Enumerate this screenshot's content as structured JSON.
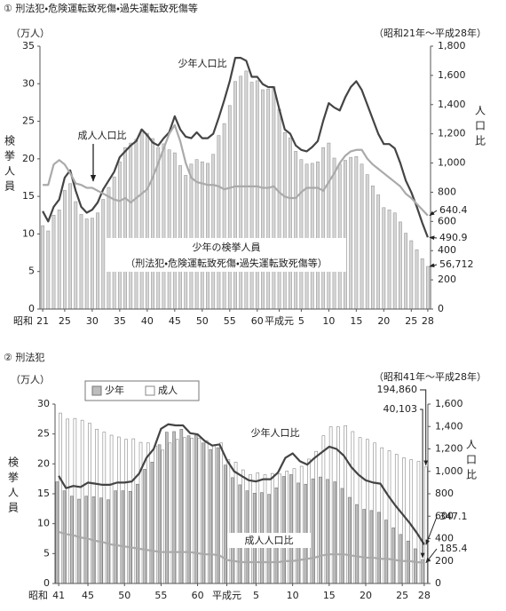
{
  "chart_data": [
    {
      "type": "bar",
      "title": "① 刑法犯・危険運転致死傷・過失運転致死傷等",
      "y_unit": "（万人）",
      "period": "（昭和21年～平成28年）",
      "y_label": "検挙人員",
      "y2_label": "人口比",
      "x_prefix": "昭和",
      "note": "（刑法犯・危険運転致死傷・過失運転致死傷等）",
      "categories": [
        "21",
        null,
        null,
        null,
        "25",
        null,
        null,
        null,
        null,
        "30",
        null,
        null,
        null,
        null,
        "35",
        null,
        null,
        null,
        null,
        "40",
        null,
        null,
        null,
        null,
        "45",
        null,
        null,
        null,
        null,
        "50",
        null,
        null,
        null,
        null,
        "55",
        null,
        null,
        null,
        null,
        "60",
        null,
        null,
        null,
        "平成元",
        null,
        null,
        null,
        "5",
        null,
        null,
        null,
        null,
        "10",
        null,
        null,
        null,
        null,
        "15",
        null,
        null,
        null,
        null,
        "20",
        null,
        null,
        null,
        null,
        "25",
        null,
        null,
        "28"
      ],
      "ylim": [
        0,
        35
      ],
      "yticks": [
        0,
        5,
        10,
        15,
        20,
        25,
        30,
        35
      ],
      "y2lim": [
        0,
        1800
      ],
      "y2ticks": [
        0,
        200,
        400,
        600,
        800,
        {
          "value": 1000,
          "label": "1,000"
        },
        {
          "value": 1200,
          "label": "1,200"
        },
        {
          "value": 1400,
          "label": "1,400"
        },
        {
          "value": 1600,
          "label": "1,600"
        },
        {
          "value": 1800,
          "label": "1,800"
        }
      ],
      "series": [
        {
          "name": "少年の検挙人員",
          "type": "bar",
          "color": "#d6d6d6",
          "edgecolor": "#9a9a9a",
          "values": [
            11.1,
            10.4,
            12.5,
            13.2,
            15.8,
            16.7,
            14.3,
            12.6,
            12.0,
            12.1,
            12.8,
            14.6,
            16.2,
            17.6,
            19.6,
            21.5,
            22.1,
            22.6,
            23.9,
            23.4,
            22.7,
            21.5,
            22.0,
            21.2,
            20.8,
            19.1,
            17.8,
            19.3,
            19.9,
            19.6,
            19.4,
            20.6,
            23.1,
            24.7,
            27.1,
            30.3,
            31.0,
            31.7,
            30.2,
            30.4,
            29.2,
            29.3,
            29.6,
            26.6,
            23.5,
            22.8,
            21.0,
            19.9,
            19.3,
            19.4,
            19.6,
            21.5,
            22.1,
            20.1,
            19.3,
            19.8,
            20.2,
            20.3,
            19.3,
            17.9,
            16.4,
            15.2,
            13.5,
            13.2,
            12.8,
            11.6,
            10.1,
            9.1,
            7.9,
            6.7,
            5.6712
          ],
          "value_labels": [
            null,
            null,
            null,
            null,
            null,
            null,
            null,
            null,
            null,
            null,
            null,
            null,
            null,
            null,
            null,
            null,
            null,
            null,
            null,
            null,
            null,
            null,
            null,
            null,
            null,
            null,
            null,
            null,
            null,
            null,
            null,
            null,
            null,
            null,
            null,
            null,
            null,
            null,
            null,
            null,
            null,
            null,
            null,
            null,
            null,
            null,
            null,
            null,
            null,
            null,
            null,
            null,
            null,
            null,
            null,
            null,
            null,
            null,
            null,
            null,
            null,
            null,
            null,
            null,
            null,
            null,
            null,
            null,
            null,
            null,
            "56,712"
          ]
        },
        {
          "name": "少年人口比",
          "type": "line",
          "axis": "y2",
          "color": "#444444",
          "label_last": true,
          "values": [
            670,
            600,
            700,
            750,
            900,
            950,
            810,
            700,
            660,
            680,
            730,
            820,
            880,
            940,
            1040,
            1080,
            1120,
            1150,
            1230,
            1190,
            1140,
            1120,
            1170,
            1210,
            1320,
            1230,
            1180,
            1170,
            1210,
            1170,
            1170,
            1200,
            1310,
            1430,
            1560,
            1720,
            1720,
            1700,
            1590,
            1590,
            1540,
            1520,
            1520,
            1370,
            1230,
            1200,
            1120,
            1090,
            1080,
            1110,
            1150,
            1290,
            1410,
            1380,
            1360,
            1450,
            1520,
            1560,
            1500,
            1400,
            1300,
            1200,
            1130,
            1130,
            1100,
            1000,
            880,
            800,
            700,
            590,
            490.9
          ]
        },
        {
          "name": "成人人口比",
          "type": "line",
          "axis": "y2",
          "color": "#aaaaaa",
          "label_last": true,
          "values": [
            850,
            850,
            990,
            1020,
            990,
            930,
            860,
            850,
            830,
            830,
            810,
            790,
            770,
            750,
            740,
            760,
            730,
            760,
            790,
            820,
            900,
            1000,
            1100,
            1200,
            1260,
            1150,
            1000,
            900,
            870,
            860,
            850,
            850,
            840,
            820,
            830,
            840,
            840,
            840,
            840,
            840,
            830,
            830,
            840,
            800,
            770,
            760,
            760,
            800,
            830,
            830,
            830,
            810,
            870,
            930,
            1000,
            1050,
            1080,
            1090,
            1090,
            1030,
            990,
            960,
            930,
            900,
            870,
            840,
            790,
            760,
            720,
            680,
            640.4
          ]
        }
      ]
    },
    {
      "type": "bar",
      "title": "② 刑法犯",
      "y_unit": "（万人）",
      "period": "（昭和41年～平成28年）",
      "y_label": "検挙人員",
      "y2_label": "人口比",
      "x_prefix": "昭和",
      "legend": true,
      "categories": [
        "41",
        null,
        null,
        null,
        "45",
        null,
        null,
        null,
        null,
        "50",
        null,
        null,
        null,
        null,
        "55",
        null,
        null,
        null,
        null,
        "60",
        null,
        null,
        null,
        "平成元",
        null,
        null,
        null,
        "5",
        null,
        null,
        null,
        null,
        "10",
        null,
        null,
        null,
        null,
        "15",
        null,
        null,
        null,
        null,
        "20",
        null,
        null,
        null,
        null,
        "25",
        null,
        null,
        "28"
      ],
      "ylim": [
        0,
        30
      ],
      "yticks": [
        0,
        5,
        10,
        15,
        20,
        25,
        30
      ],
      "y2lim": [
        0,
        1600
      ],
      "y2ticks": [
        0,
        200,
        400,
        600,
        800,
        {
          "value": 1000,
          "label": "1,000"
        },
        {
          "value": 1200,
          "label": "1,200"
        },
        {
          "value": 1400,
          "label": "1,400"
        },
        {
          "value": 1600,
          "label": "1,600"
        }
      ],
      "series": [
        {
          "name": "少年",
          "type": "bar",
          "color": "#bdbdbd",
          "edgecolor": "#777777",
          "values": [
            17.0,
            15.5,
            14.6,
            14.1,
            14.6,
            14.5,
            14.3,
            14.0,
            15.5,
            15.5,
            15.4,
            16.6,
            19.1,
            20.3,
            23.2,
            25.3,
            25.4,
            25.8,
            24.7,
            24.8,
            23.5,
            22.4,
            22.7,
            19.8,
            17.7,
            16.5,
            15.5,
            15.1,
            15.2,
            14.9,
            16.0,
            17.9,
            18.2,
            16.8,
            16.6,
            17.5,
            17.8,
            17.4,
            17.0,
            15.9,
            14.4,
            13.2,
            12.4,
            12.2,
            11.9,
            10.6,
            9.3,
            8.2,
            7.1,
            5.8,
            4.0103
          ],
          "value_labels": [
            null,
            null,
            null,
            null,
            null,
            null,
            null,
            null,
            null,
            null,
            null,
            null,
            null,
            null,
            null,
            null,
            null,
            null,
            null,
            null,
            null,
            null,
            null,
            null,
            null,
            null,
            null,
            null,
            null,
            null,
            null,
            null,
            null,
            null,
            null,
            null,
            null,
            null,
            null,
            null,
            null,
            null,
            null,
            null,
            null,
            null,
            null,
            null,
            null,
            null,
            "40,103"
          ]
        },
        {
          "name": "成人",
          "type": "bar",
          "color": "#ffffff",
          "edgecolor": "#888888",
          "values": [
            28.5,
            27.5,
            27.6,
            27.3,
            26.8,
            25.8,
            25.3,
            24.8,
            24.5,
            24.1,
            24.2,
            23.6,
            23.5,
            23.0,
            22.3,
            23.5,
            24.1,
            24.4,
            24.3,
            24.3,
            23.9,
            23.1,
            23.5,
            20.7,
            20.3,
            19.0,
            18.2,
            18.5,
            18.2,
            18.4,
            18.3,
            18.8,
            19.2,
            19.6,
            20.8,
            22.1,
            24.7,
            26.2,
            26.2,
            26.4,
            25.4,
            24.4,
            24.1,
            23.5,
            22.7,
            22.2,
            21.6,
            21.0,
            20.7,
            20.4,
            19.486
          ],
          "value_labels": [
            null,
            null,
            null,
            null,
            null,
            null,
            null,
            null,
            null,
            null,
            null,
            null,
            null,
            null,
            null,
            null,
            null,
            null,
            null,
            null,
            null,
            null,
            null,
            null,
            null,
            null,
            null,
            null,
            null,
            null,
            null,
            null,
            null,
            null,
            null,
            null,
            null,
            null,
            null,
            null,
            null,
            null,
            null,
            null,
            null,
            null,
            null,
            null,
            null,
            null,
            "194,860"
          ]
        },
        {
          "name": "少年人口比",
          "type": "line",
          "axis": "y2",
          "color": "#444444",
          "label_last": true,
          "values": [
            960,
            850,
            870,
            860,
            900,
            890,
            880,
            880,
            900,
            900,
            910,
            980,
            1120,
            1200,
            1380,
            1420,
            1410,
            1410,
            1340,
            1330,
            1270,
            1230,
            1240,
            1100,
            1000,
            960,
            920,
            910,
            930,
            930,
            990,
            1120,
            1160,
            1090,
            1060,
            1120,
            1170,
            1220,
            1200,
            1140,
            1040,
            970,
            920,
            900,
            890,
            790,
            700,
            620,
            540,
            450,
            347.1
          ]
        },
        {
          "name": "成人人口比",
          "type": "line",
          "axis": "y2",
          "color": "#aaaaaa",
          "label_last": true,
          "values": [
            460,
            440,
            430,
            410,
            400,
            380,
            370,
            350,
            340,
            330,
            320,
            310,
            300,
            290,
            280,
            280,
            280,
            280,
            280,
            270,
            260,
            260,
            250,
            210,
            200,
            190,
            190,
            190,
            190,
            190,
            190,
            200,
            200,
            210,
            220,
            230,
            250,
            260,
            260,
            260,
            250,
            240,
            230,
            230,
            220,
            220,
            210,
            200,
            200,
            190,
            185.4
          ]
        }
      ]
    }
  ]
}
